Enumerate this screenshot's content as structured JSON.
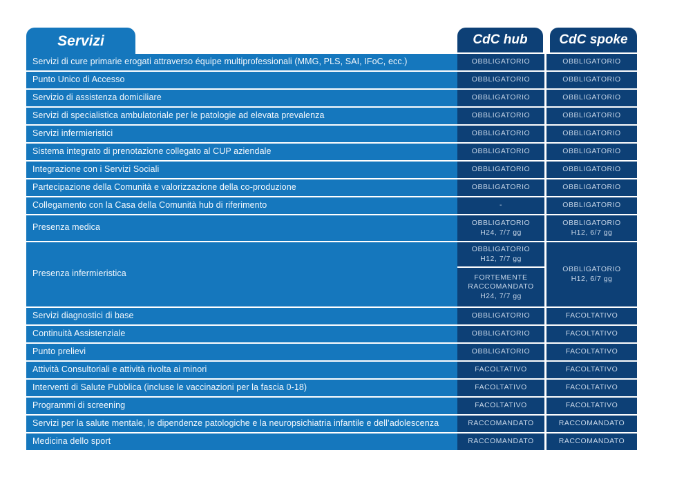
{
  "header": {
    "services_title": "Servizi",
    "hub_title": "CdC hub",
    "spoke_title": "CdC spoke"
  },
  "colors": {
    "light_blue": "#1577BD",
    "dark_blue": "#0D4076",
    "value_text": "#C7D6E8",
    "label_text": "#F4F8FC"
  },
  "rows": [
    {
      "type": "single",
      "label": "Servizi di cure primarie erogati attraverso équipe multiprofessionali (MMG, PLS, SAI, IFoC, ecc.)",
      "hub": {
        "lines": [
          "OBBLIGATORIO"
        ]
      },
      "spoke": {
        "lines": [
          "OBBLIGATORIO"
        ]
      }
    },
    {
      "type": "single",
      "label": "Punto Unico di Accesso",
      "hub": {
        "lines": [
          "OBBLIGATORIO"
        ]
      },
      "spoke": {
        "lines": [
          "OBBLIGATORIO"
        ]
      }
    },
    {
      "type": "single",
      "label": "Servizio di assistenza domiciliare",
      "hub": {
        "lines": [
          "OBBLIGATORIO"
        ]
      },
      "spoke": {
        "lines": [
          "OBBLIGATORIO"
        ]
      }
    },
    {
      "type": "single",
      "label": "Servizi di specialistica ambulatoriale per le patologie ad elevata prevalenza",
      "hub": {
        "lines": [
          "OBBLIGATORIO"
        ]
      },
      "spoke": {
        "lines": [
          "OBBLIGATORIO"
        ]
      }
    },
    {
      "type": "single",
      "label": "Servizi infermieristici",
      "hub": {
        "lines": [
          "OBBLIGATORIO"
        ]
      },
      "spoke": {
        "lines": [
          "OBBLIGATORIO"
        ]
      }
    },
    {
      "type": "single",
      "label": "Sistema integrato di prenotazione collegato al CUP aziendale",
      "hub": {
        "lines": [
          "OBBLIGATORIO"
        ]
      },
      "spoke": {
        "lines": [
          "OBBLIGATORIO"
        ]
      }
    },
    {
      "type": "single",
      "label": "Integrazione con i Servizi Sociali",
      "hub": {
        "lines": [
          "OBBLIGATORIO"
        ]
      },
      "spoke": {
        "lines": [
          "OBBLIGATORIO"
        ]
      }
    },
    {
      "type": "single",
      "label": "Partecipazione della Comunità e valorizzazione della co-produzione",
      "hub": {
        "lines": [
          "OBBLIGATORIO"
        ]
      },
      "spoke": {
        "lines": [
          "OBBLIGATORIO"
        ]
      }
    },
    {
      "type": "single",
      "label": "Collegamento con la Casa della Comunità hub di riferimento",
      "hub": {
        "lines": [
          "-"
        ]
      },
      "spoke": {
        "lines": [
          "OBBLIGATORIO"
        ]
      }
    },
    {
      "type": "tall",
      "label": "Presenza medica",
      "hub": {
        "lines": [
          "OBBLIGATORIO",
          "H24, 7/7 gg"
        ]
      },
      "spoke": {
        "lines": [
          "OBBLIGATORIO",
          "H12, 6/7 gg"
        ]
      }
    },
    {
      "type": "xtall",
      "label": "Presenza infermieristica",
      "hub": {
        "split": [
          {
            "lines": [
              "OBBLIGATORIO",
              "H12, 7/7 gg"
            ]
          },
          {
            "lines": [
              "FORTEMENTE",
              "RACCOMANDATO",
              "H24, 7/7 gg"
            ]
          }
        ]
      },
      "spoke": {
        "lines": [
          "OBBLIGATORIO",
          "H12, 6/7 gg"
        ]
      }
    },
    {
      "type": "single",
      "label": "Servizi diagnostici di base",
      "hub": {
        "lines": [
          "OBBLIGATORIO"
        ]
      },
      "spoke": {
        "lines": [
          "FACOLTATIVO"
        ]
      }
    },
    {
      "type": "single",
      "label": "Continuità Assistenziale",
      "hub": {
        "lines": [
          "OBBLIGATORIO"
        ]
      },
      "spoke": {
        "lines": [
          "FACOLTATIVO"
        ]
      }
    },
    {
      "type": "single",
      "label": "Punto prelievi",
      "hub": {
        "lines": [
          "OBBLIGATORIO"
        ]
      },
      "spoke": {
        "lines": [
          "FACOLTATIVO"
        ]
      }
    },
    {
      "type": "single",
      "label": "Attività Consultoriali e attività rivolta ai minori",
      "hub": {
        "lines": [
          "FACOLTATIVO"
        ]
      },
      "spoke": {
        "lines": [
          "FACOLTATIVO"
        ]
      }
    },
    {
      "type": "single",
      "label": "Interventi di Salute Pubblica (incluse le vaccinazioni per la fascia 0-18)",
      "hub": {
        "lines": [
          "FACOLTATIVO"
        ]
      },
      "spoke": {
        "lines": [
          "FACOLTATIVO"
        ]
      }
    },
    {
      "type": "single",
      "label": "Programmi di screening",
      "hub": {
        "lines": [
          "FACOLTATIVO"
        ]
      },
      "spoke": {
        "lines": [
          "FACOLTATIVO"
        ]
      }
    },
    {
      "type": "single",
      "label": "Servizi per la salute mentale, le dipendenze patologiche e la neuropsichiatria infantile e dell’adolescenza",
      "hub": {
        "lines": [
          "RACCOMANDATO"
        ]
      },
      "spoke": {
        "lines": [
          "RACCOMANDATO"
        ]
      }
    },
    {
      "type": "single",
      "label": "Medicina dello sport",
      "hub": {
        "lines": [
          "RACCOMANDATO"
        ]
      },
      "spoke": {
        "lines": [
          "RACCOMANDATO"
        ]
      }
    }
  ]
}
